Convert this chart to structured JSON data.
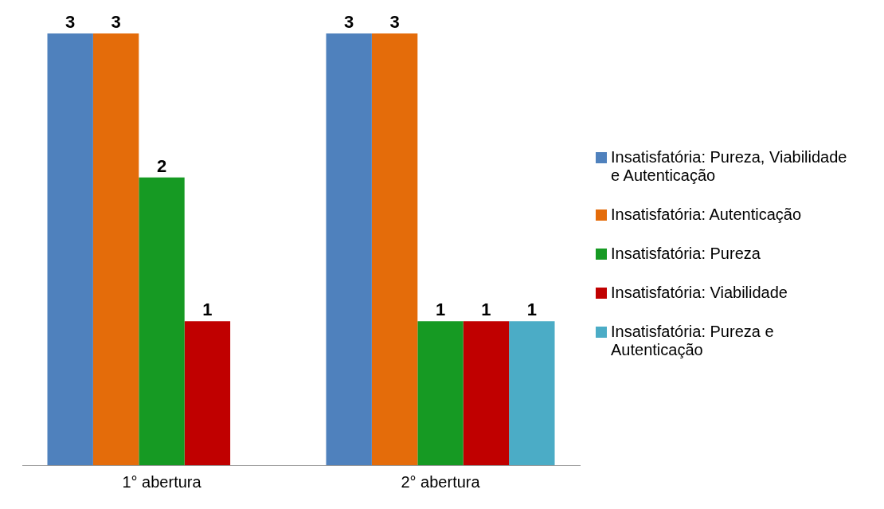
{
  "chart_data": {
    "type": "bar",
    "categories": [
      "1° abertura",
      "2° abertura"
    ],
    "series": [
      {
        "name": "Insatisfatória: Pureza, Viabilidade e Autenticação",
        "color": "#4f81bd",
        "values": [
          3,
          3
        ]
      },
      {
        "name": "Insatisfatória: Autenticação",
        "color": "#e46c0a",
        "values": [
          3,
          3
        ]
      },
      {
        "name": "Insatisfatória: Pureza",
        "color": "#169a23",
        "values": [
          2,
          1
        ]
      },
      {
        "name": "Insatisfatória: Viabilidade",
        "color": "#c00000",
        "values": [
          1,
          1
        ]
      },
      {
        "name": "Insatisfatória: Pureza e Autenticação",
        "color": "#4bacc6",
        "values": [
          null,
          1
        ]
      }
    ],
    "data_labels": true,
    "legend": "right",
    "grid": false,
    "tick_labels": "x"
  }
}
